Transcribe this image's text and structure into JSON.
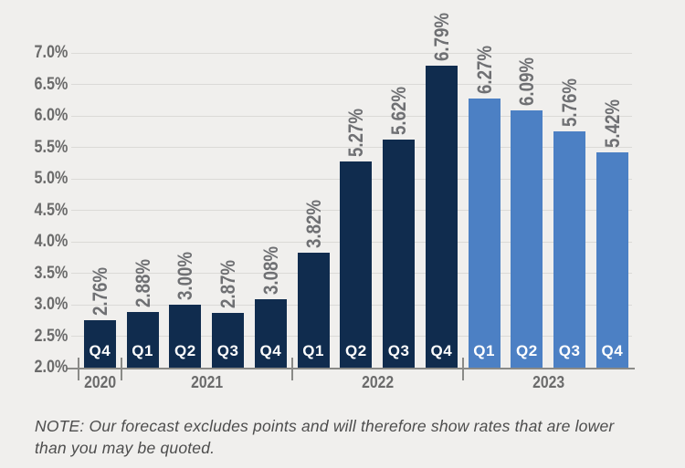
{
  "chart_data": {
    "type": "bar",
    "unit": "percent",
    "grid": "horizontal",
    "legend": "none",
    "y_axis": {
      "min": 2.0,
      "max": 7.0,
      "tick_step": 0.5,
      "ticks": [
        {
          "label": "7.0%",
          "value": 7.0
        },
        {
          "label": "6.5%",
          "value": 6.5
        },
        {
          "label": "6.0%",
          "value": 6.0
        },
        {
          "label": "5.5%",
          "value": 5.5
        },
        {
          "label": "5.0%",
          "value": 5.0
        },
        {
          "label": "4.5%",
          "value": 4.5
        },
        {
          "label": "4.0%",
          "value": 4.0
        },
        {
          "label": "3.5%",
          "value": 3.5
        },
        {
          "label": "3.0%",
          "value": 3.0
        },
        {
          "label": "2.5%",
          "value": 2.5
        },
        {
          "label": "2.0%",
          "value": 2.0
        }
      ]
    },
    "groups": [
      {
        "year": "2020",
        "style": "historical",
        "quarters": [
          "Q4"
        ],
        "values": [
          2.76
        ],
        "value_labels": [
          "2.76%"
        ]
      },
      {
        "year": "2021",
        "style": "historical",
        "quarters": [
          "Q1",
          "Q2",
          "Q3",
          "Q4"
        ],
        "values": [
          2.88,
          3.0,
          2.87,
          3.08
        ],
        "value_labels": [
          "2.88%",
          "3.00%",
          "2.87%",
          "3.08%"
        ]
      },
      {
        "year": "2022",
        "style": "historical",
        "quarters": [
          "Q1",
          "Q2",
          "Q3",
          "Q4"
        ],
        "values": [
          3.82,
          5.27,
          5.62,
          6.79
        ],
        "value_labels": [
          "3.82%",
          "5.27%",
          "5.62%",
          "6.79%"
        ]
      },
      {
        "year": "2023",
        "style": "forecast",
        "quarters": [
          "Q1",
          "Q2",
          "Q3",
          "Q4"
        ],
        "values": [
          6.27,
          6.09,
          5.76,
          5.42
        ],
        "value_labels": [
          "6.27%",
          "6.09%",
          "5.76%",
          "5.42%"
        ]
      }
    ],
    "colors": {
      "historical_bar": "#102C4E",
      "forecast_bar": "#4C80C4",
      "background": "#F0EFED",
      "gridline": "#DBDAD7",
      "axis": "#8A8A87",
      "tick_label": "#6B6B6B",
      "value_label": "#6F7073",
      "quarter_label": "#FFFFFF"
    }
  },
  "note": {
    "line1": "NOTE: Our forecast excludes points and will therefore show rates that are lower",
    "line2": "than you may be quoted."
  }
}
